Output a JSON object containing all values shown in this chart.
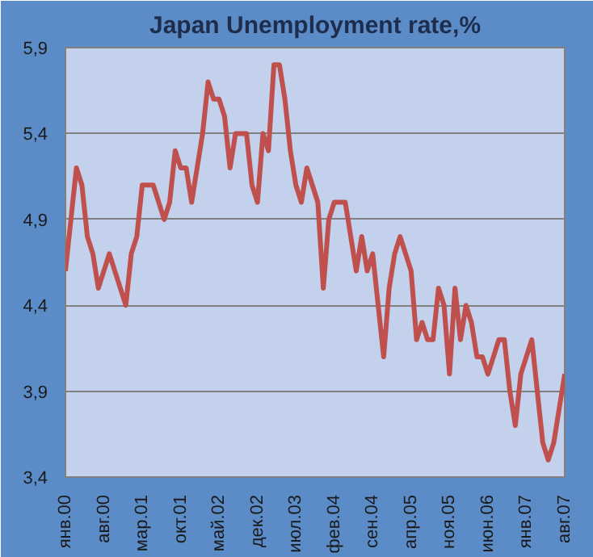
{
  "chart_data": {
    "type": "line",
    "title": "Japan Unemployment rate,%",
    "categories": [
      "янв.00",
      null,
      null,
      null,
      null,
      null,
      null,
      "авг.00",
      null,
      null,
      null,
      null,
      null,
      null,
      "мар.01",
      null,
      null,
      null,
      null,
      null,
      null,
      "окт.01",
      null,
      null,
      null,
      null,
      null,
      null,
      "май.02",
      null,
      null,
      null,
      null,
      null,
      null,
      "дек.02",
      null,
      null,
      null,
      null,
      null,
      null,
      "июл.03",
      null,
      null,
      null,
      null,
      null,
      null,
      "фев.04",
      null,
      null,
      null,
      null,
      null,
      null,
      "сен.04",
      null,
      null,
      null,
      null,
      null,
      null,
      "апр.05",
      null,
      null,
      null,
      null,
      null,
      null,
      "ноя.05",
      null,
      null,
      null,
      null,
      null,
      null,
      "июн.06",
      null,
      null,
      null,
      null,
      null,
      null,
      "янв.07",
      null,
      null,
      null,
      null,
      null,
      null,
      "авг.07"
    ],
    "series": [
      {
        "color": "#c0504d",
        "values": [
          4.6,
          4.9,
          5.2,
          5.1,
          4.8,
          4.7,
          4.5,
          4.6,
          4.7,
          4.6,
          4.5,
          4.4,
          4.7,
          4.8,
          5.1,
          5.1,
          5.1,
          5.0,
          4.9,
          5.0,
          5.3,
          5.2,
          5.2,
          5.0,
          5.2,
          5.4,
          5.7,
          5.6,
          5.6,
          5.5,
          5.2,
          5.4,
          5.4,
          5.4,
          5.1,
          5.0,
          5.4,
          5.3,
          5.8,
          5.8,
          5.6,
          5.3,
          5.1,
          5.0,
          5.2,
          5.1,
          5.0,
          4.5,
          4.9,
          5.0,
          5.0,
          5.0,
          4.8,
          4.6,
          4.8,
          4.6,
          4.7,
          4.4,
          4.1,
          4.5,
          4.7,
          4.8,
          4.7,
          4.6,
          4.2,
          4.3,
          4.2,
          4.2,
          4.5,
          4.4,
          4.0,
          4.5,
          4.2,
          4.4,
          4.3,
          4.1,
          4.1,
          4.0,
          4.1,
          4.2,
          4.2,
          3.9,
          3.7,
          4.0,
          4.1,
          4.2,
          3.9,
          3.6,
          3.5,
          3.6,
          3.8,
          4.0
        ]
      }
    ],
    "ylim": [
      3.4,
      5.9
    ],
    "yticks": [
      {
        "value": 3.4,
        "label": "3,4"
      },
      {
        "value": 3.9,
        "label": "3,9"
      },
      {
        "value": 4.4,
        "label": "4,4"
      },
      {
        "value": 4.9,
        "label": "4,9"
      },
      {
        "value": 5.4,
        "label": "5,4"
      },
      {
        "value": 5.9,
        "label": "5,9"
      }
    ],
    "grid": "y",
    "marker": "none",
    "line_style": "solid"
  }
}
